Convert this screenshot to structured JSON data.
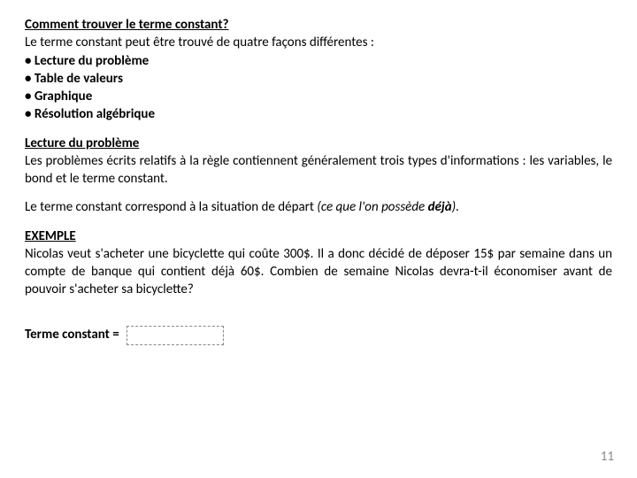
{
  "header": {
    "title": "Comment trouver le terme constant?",
    "intro": "Le terme constant peut être trouvé de quatre façons différentes :",
    "bullets": [
      "Lecture du problème",
      "Table de valeurs",
      "Graphique",
      "Résolution algébrique"
    ]
  },
  "section2": {
    "title": "Lecture du problème",
    "para1": "Les problèmes écrits relatifs à la règle contiennent généralement trois types d'informations : les variables, le bond et le terme constant.",
    "para2a": "Le terme constant correspond à la situation de départ ",
    "para2b": "(ce que l'on possède ",
    "para2c": "déjà",
    "para2d": ")."
  },
  "example": {
    "label": "EXEMPLE",
    "text": "Nicolas veut s'acheter une bicyclette qui coûte 300$. Il a donc décidé de déposer 15$ par semaine dans un compte de banque qui contient déjà 60$. Combien de semaine Nicolas devra-t-il économiser avant de pouvoir s'acheter sa bicyclette?"
  },
  "constant": {
    "label": "Terme constant = "
  },
  "page": {
    "num": "11"
  },
  "style": {
    "page_bg": "#ffffff",
    "text_color": "#000000",
    "muted_color": "#8a8a8a",
    "box_border": "#888888",
    "base_fontsize": 15
  }
}
